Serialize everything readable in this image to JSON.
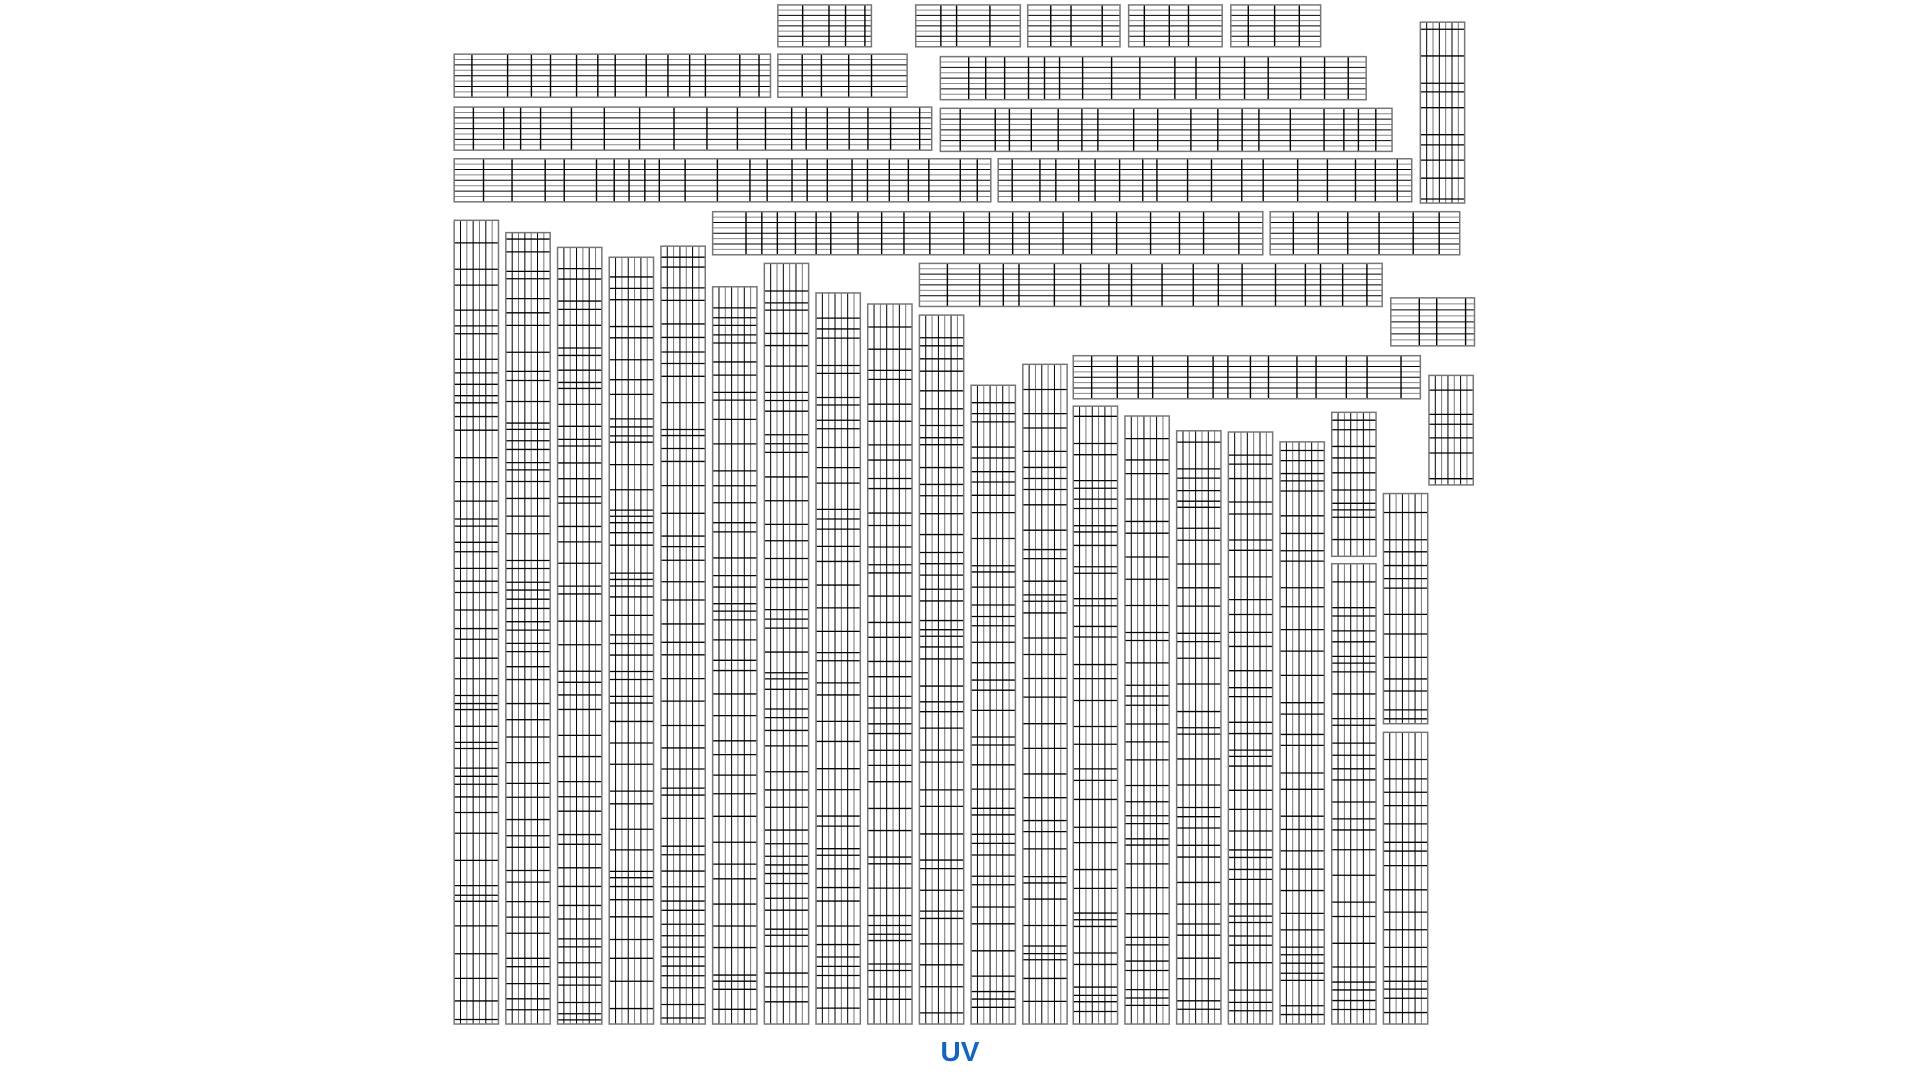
{
  "label": "UV",
  "colors": {
    "label": "#1565c0",
    "grid_line": "#000000",
    "island_border": "#777777",
    "background": "#ffffff"
  }
}
